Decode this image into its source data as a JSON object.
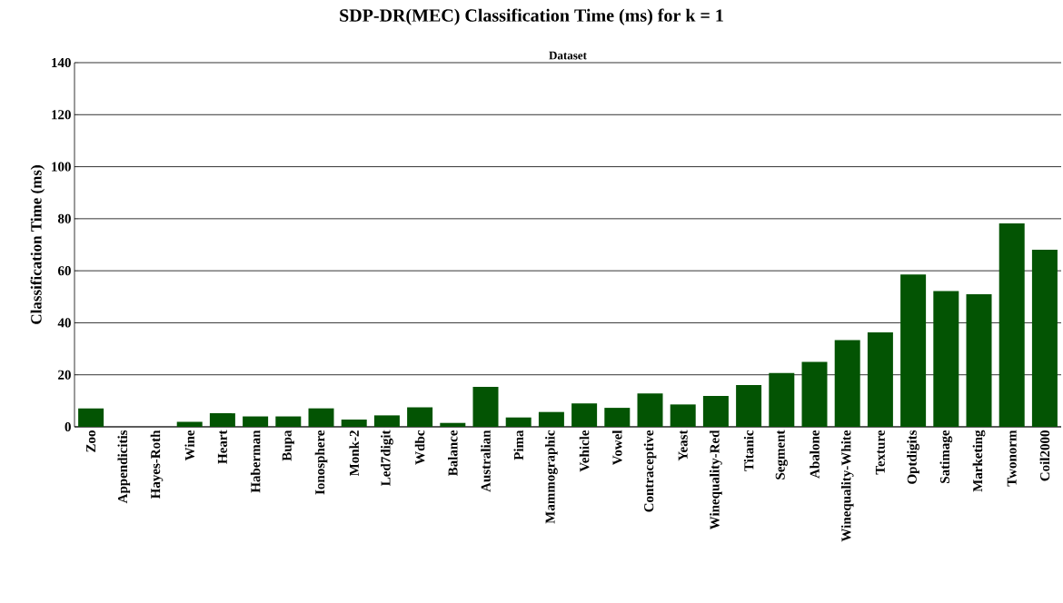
{
  "chart_data": {
    "type": "bar",
    "title": "SDP-DR(MEC) Classification Time (ms) for k = 1",
    "xlabel": "Dataset",
    "ylabel": "Classification Time (ms)",
    "categories": [
      "Zoo",
      "Appendicitis",
      "Hayes-Roth",
      "Wine",
      "Heart",
      "Haberman",
      "Bupa",
      "Ionosphere",
      "Monk-2",
      "Led7digit",
      "Wdbc",
      "Balance",
      "Australian",
      "Pima",
      "Mammographic",
      "Vehicle",
      "Vowel",
      "Contraceptive",
      "Yeast",
      "Winequality-Red",
      "Titanic",
      "Segment",
      "Abalone",
      "Winequality-White",
      "Texture",
      "Optdigits",
      "Satimage",
      "Marketing",
      "Twonorm",
      "Coil2000"
    ],
    "values": [
      7.1,
      0,
      0,
      1.9,
      5.2,
      4.0,
      4.0,
      7.1,
      2.8,
      4.4,
      7.5,
      1.5,
      15.4,
      3.6,
      5.7,
      9.0,
      7.3,
      12.8,
      8.6,
      11.9,
      16.1,
      20.7,
      25.0,
      33.3,
      36.3,
      58.6,
      52.2,
      51.0,
      78.2,
      68.1
    ],
    "color": "#035403",
    "ylim": [
      0,
      140
    ],
    "yticks": [
      0,
      20,
      40,
      60,
      80,
      100,
      120,
      140
    ],
    "grid": "y"
  }
}
